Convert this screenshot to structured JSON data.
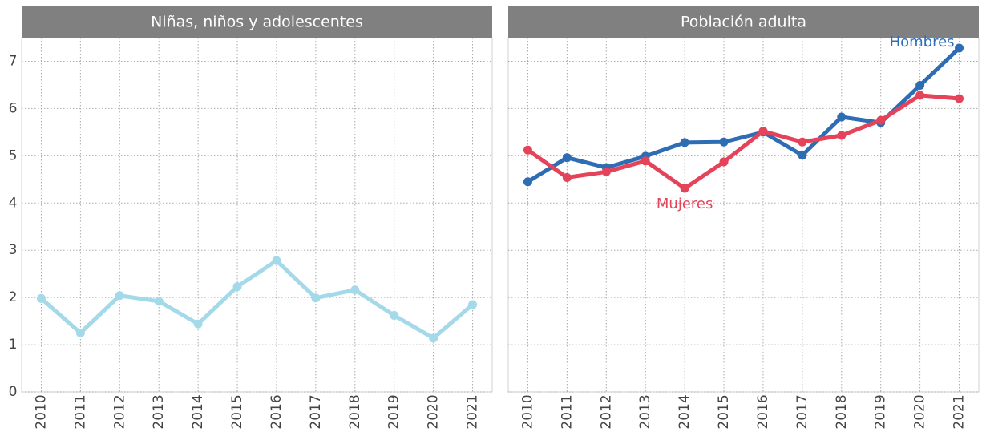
{
  "chart_data": [
    {
      "type": "line",
      "title": "Niñas, niños y adolescentes",
      "categories": [
        "2010",
        "2011",
        "2012",
        "2013",
        "2014",
        "2015",
        "2016",
        "2017",
        "2018",
        "2019",
        "2020",
        "2021"
      ],
      "series": [
        {
          "color": "#a3d9e9",
          "values": [
            1.98,
            1.25,
            2.04,
            1.92,
            1.44,
            2.23,
            2.78,
            1.99,
            2.16,
            1.62,
            1.14,
            1.85
          ]
        }
      ],
      "ylim": [
        0,
        7.5
      ],
      "yticks": [
        0,
        1,
        2,
        3,
        4,
        5,
        6,
        7
      ],
      "grid": true
    },
    {
      "type": "line",
      "title": "Población adulta",
      "categories": [
        "2010",
        "2011",
        "2012",
        "2013",
        "2014",
        "2015",
        "2016",
        "2017",
        "2018",
        "2019",
        "2020",
        "2021"
      ],
      "series": [
        {
          "name": "Hombres",
          "color": "#2e6db4",
          "values": [
            4.45,
            4.96,
            4.75,
            4.99,
            5.28,
            5.29,
            5.5,
            5.01,
            5.82,
            5.7,
            6.49,
            7.28
          ]
        },
        {
          "name": "Mujeres",
          "color": "#e5435a",
          "values": [
            5.12,
            4.54,
            4.66,
            4.89,
            4.31,
            4.87,
            5.52,
            5.29,
            5.43,
            5.75,
            6.28,
            6.21
          ]
        }
      ],
      "ylim": [
        0,
        7.5
      ],
      "yticks": [
        0,
        1,
        2,
        3,
        4,
        5,
        6,
        7
      ],
      "grid": true
    }
  ]
}
